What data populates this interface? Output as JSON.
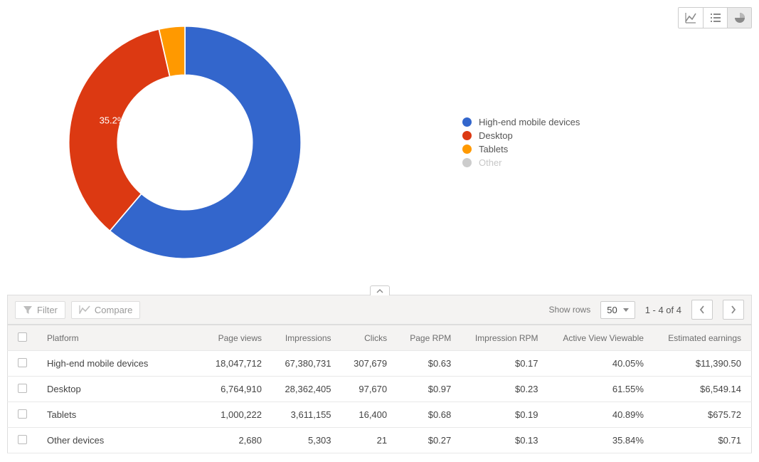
{
  "view_toggle": {
    "buttons": [
      "line-chart",
      "list",
      "pie-chart"
    ],
    "selected_index": 2
  },
  "chart": {
    "type": "donut",
    "inner_ratio": 0.58,
    "background_color": "#ffffff",
    "pct_label_color": "#ffffff",
    "pct_label_fontsize": 13,
    "slices": [
      {
        "label": "High-end mobile devices",
        "pct": 61.2,
        "display_pct": "61.2%",
        "color": "#3366cc"
      },
      {
        "label": "Desktop",
        "pct": 35.2,
        "display_pct": "35.2%",
        "color": "#dc3912"
      },
      {
        "label": "Tablets",
        "pct": 3.6,
        "display_pct": "",
        "color": "#ff9900"
      },
      {
        "label": "Other",
        "pct": 0.0,
        "display_pct": "",
        "color": "#cccccc"
      }
    ],
    "pct_label_positions": [
      {
        "left_pct": 56,
        "top_pct": 66
      },
      {
        "left_pct": 20,
        "top_pct": 41
      }
    ]
  },
  "legend": {
    "items": [
      {
        "label": "High-end mobile devices",
        "color": "#3366cc",
        "muted": false
      },
      {
        "label": "Desktop",
        "color": "#dc3912",
        "muted": false
      },
      {
        "label": "Tablets",
        "color": "#ff9900",
        "muted": false
      },
      {
        "label": "Other",
        "color": "#cccccc",
        "muted": true
      }
    ]
  },
  "toolbar": {
    "filter_label": "Filter",
    "compare_label": "Compare",
    "show_rows_label": "Show rows",
    "page_size": "50",
    "range_text": "1 - 4 of 4"
  },
  "table": {
    "columns": [
      "Platform",
      "Page views",
      "Impressions",
      "Clicks",
      "Page RPM",
      "Impression RPM",
      "Active View Viewable",
      "Estimated earnings"
    ],
    "rows": [
      {
        "platform": "High-end mobile devices",
        "page_views": "18,047,712",
        "impressions": "67,380,731",
        "clicks": "307,679",
        "page_rpm": "$0.63",
        "impr_rpm": "$0.17",
        "avv": "40.05%",
        "earnings": "$11,390.50"
      },
      {
        "platform": "Desktop",
        "page_views": "6,764,910",
        "impressions": "28,362,405",
        "clicks": "97,670",
        "page_rpm": "$0.97",
        "impr_rpm": "$0.23",
        "avv": "61.55%",
        "earnings": "$6,549.14"
      },
      {
        "platform": "Tablets",
        "page_views": "1,000,222",
        "impressions": "3,611,155",
        "clicks": "16,400",
        "page_rpm": "$0.68",
        "impr_rpm": "$0.19",
        "avv": "40.89%",
        "earnings": "$675.72"
      },
      {
        "platform": "Other devices",
        "page_views": "2,680",
        "impressions": "5,303",
        "clicks": "21",
        "page_rpm": "$0.27",
        "impr_rpm": "$0.13",
        "avv": "35.84%",
        "earnings": "$0.71"
      }
    ]
  },
  "colors": {
    "toolbar_bg": "#f4f3f2",
    "border": "#dddddd",
    "header_text": "#6d6d6d",
    "body_text": "#444444",
    "muted_text": "#c7c7c7"
  }
}
